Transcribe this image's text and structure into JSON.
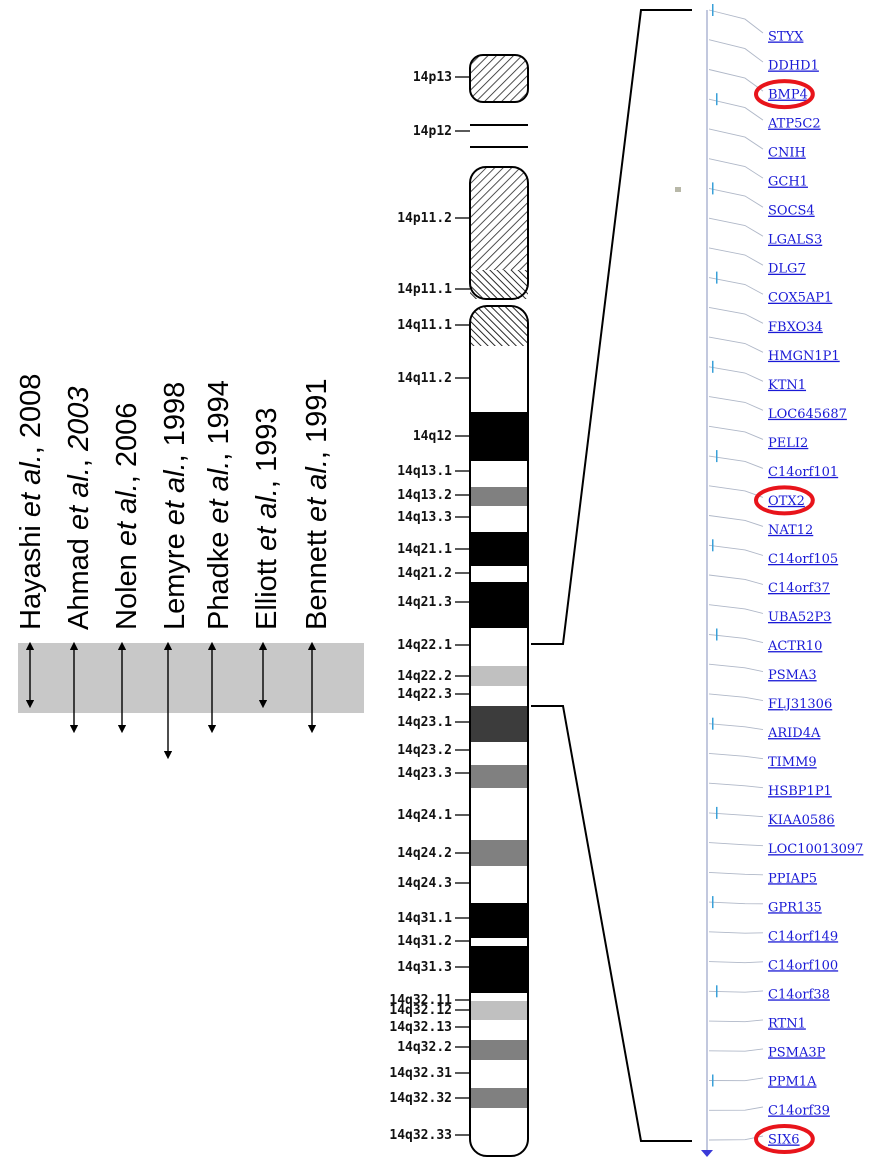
{
  "studies": [
    {
      "author": "Hayashi",
      "etal": "et al.",
      "sep": ", ",
      "year": "2008",
      "italic_year": false
    },
    {
      "author": "Ahmad",
      "etal": "et al.",
      "sep": ", ",
      "year": "2003",
      "italic_year": true
    },
    {
      "author": "Nolen",
      "etal": "et al.",
      "sep": ", ",
      "year": "2006",
      "italic_year": false
    },
    {
      "author": "Lemyre",
      "etal": "et al.",
      "sep": ", ",
      "year": "1998",
      "italic_year": false
    },
    {
      "author": "Phadke",
      "etal": "et al.",
      "sep": ", ",
      "year": "1994",
      "italic_year": false
    },
    {
      "author": "Elliott",
      "etal": "et al.",
      "sep": ", ",
      "year": "1993",
      "italic_year": false
    },
    {
      "author": "Bennett",
      "etal": "et al.",
      "sep": ", ",
      "year": "1991",
      "italic_year": false
    }
  ],
  "arrow_extents": [
    "14q22.1-14q22.3",
    "14q22.1-14q23.1",
    "14q22.1-14q23.1",
    "14q22.1-14q23.2",
    "14q22.1-14q23.1",
    "14q22.1-14q22.3",
    "14q22.1-14q23.1"
  ],
  "bands": [
    {
      "label": "14p13",
      "stain": "stalk"
    },
    {
      "label": "14p12",
      "stain": "gvar-line"
    },
    {
      "label": "14p11.2",
      "stain": "stalk"
    },
    {
      "label": "14p11.1",
      "stain": "acen"
    },
    {
      "label": "14q11.1",
      "stain": "acen"
    },
    {
      "label": "14q11.2",
      "stain": "gneg"
    },
    {
      "label": "14q12",
      "stain": "gpos100"
    },
    {
      "label": "14q13.1",
      "stain": "gneg"
    },
    {
      "label": "14q13.2",
      "stain": "gpos50"
    },
    {
      "label": "14q13.3",
      "stain": "gneg"
    },
    {
      "label": "14q21.1",
      "stain": "gpos100"
    },
    {
      "label": "14q21.2",
      "stain": "gneg"
    },
    {
      "label": "14q21.3",
      "stain": "gpos100"
    },
    {
      "label": "14q22.1",
      "stain": "gneg"
    },
    {
      "label": "14q22.2",
      "stain": "gpos25"
    },
    {
      "label": "14q22.3",
      "stain": "gneg"
    },
    {
      "label": "14q23.1",
      "stain": "gpos75"
    },
    {
      "label": "14q23.2",
      "stain": "gneg"
    },
    {
      "label": "14q23.3",
      "stain": "gpos50"
    },
    {
      "label": "14q24.1",
      "stain": "gneg"
    },
    {
      "label": "14q24.2",
      "stain": "gpos50"
    },
    {
      "label": "14q24.3",
      "stain": "gneg"
    },
    {
      "label": "14q31.1",
      "stain": "gpos100"
    },
    {
      "label": "14q31.2",
      "stain": "gneg"
    },
    {
      "label": "14q31.3",
      "stain": "gpos100"
    },
    {
      "label": "14q32.11",
      "stain": "gneg"
    },
    {
      "label": "14q32.12",
      "stain": "gpos25"
    },
    {
      "label": "14q32.13",
      "stain": "gneg"
    },
    {
      "label": "14q32.2",
      "stain": "gpos50"
    },
    {
      "label": "14q32.31",
      "stain": "gneg"
    },
    {
      "label": "14q32.32",
      "stain": "gpos50"
    },
    {
      "label": "14q32.33",
      "stain": "gneg"
    }
  ],
  "genes": [
    {
      "name": "STYX",
      "highlighted": false
    },
    {
      "name": "DDHD1",
      "highlighted": false
    },
    {
      "name": "BMP4",
      "highlighted": true
    },
    {
      "name": "ATP5C2",
      "highlighted": false
    },
    {
      "name": "CNIH",
      "highlighted": false
    },
    {
      "name": "GCH1",
      "highlighted": false
    },
    {
      "name": "SOCS4",
      "highlighted": false
    },
    {
      "name": "LGALS3",
      "highlighted": false
    },
    {
      "name": "DLG7",
      "highlighted": false
    },
    {
      "name": "COX5AP1",
      "highlighted": false
    },
    {
      "name": "FBXO34",
      "highlighted": false
    },
    {
      "name": "HMGN1P1",
      "highlighted": false
    },
    {
      "name": "KTN1",
      "highlighted": false
    },
    {
      "name": "LOC645687",
      "highlighted": false
    },
    {
      "name": "PELI2",
      "highlighted": false
    },
    {
      "name": "C14orf101",
      "highlighted": false
    },
    {
      "name": "OTX2",
      "highlighted": true
    },
    {
      "name": "NAT12",
      "highlighted": false
    },
    {
      "name": "C14orf105",
      "highlighted": false
    },
    {
      "name": "C14orf37",
      "highlighted": false
    },
    {
      "name": "UBA52P3",
      "highlighted": false
    },
    {
      "name": "ACTR10",
      "highlighted": false
    },
    {
      "name": "PSMA3",
      "highlighted": false
    },
    {
      "name": "FLJ31306",
      "highlighted": false
    },
    {
      "name": "ARID4A",
      "highlighted": false
    },
    {
      "name": "TIMM9",
      "highlighted": false
    },
    {
      "name": "HSBP1P1",
      "highlighted": false
    },
    {
      "name": "KIAA0586",
      "highlighted": false
    },
    {
      "name": "LOC10013097",
      "highlighted": false
    },
    {
      "name": "PPIAP5",
      "highlighted": false
    },
    {
      "name": "GPR135",
      "highlighted": false
    },
    {
      "name": "C14orf149",
      "highlighted": false
    },
    {
      "name": "C14orf100",
      "highlighted": false
    },
    {
      "name": "C14orf38",
      "highlighted": false
    },
    {
      "name": "RTN1",
      "highlighted": false
    },
    {
      "name": "PSMA3P",
      "highlighted": false
    },
    {
      "name": "PPM1A",
      "highlighted": false
    },
    {
      "name": "C14orf39",
      "highlighted": false
    },
    {
      "name": "SIX6",
      "highlighted": true
    }
  ],
  "colors": {
    "highlight_circle": "#e8141b",
    "gene_link": "#1a1ad6",
    "region_shade": "#c8c8c8",
    "gpos100": "#000000",
    "gpos75": "#3c3c3c",
    "gpos50": "#808080",
    "gpos25": "#c0c0c0",
    "gneg": "#ffffff"
  }
}
